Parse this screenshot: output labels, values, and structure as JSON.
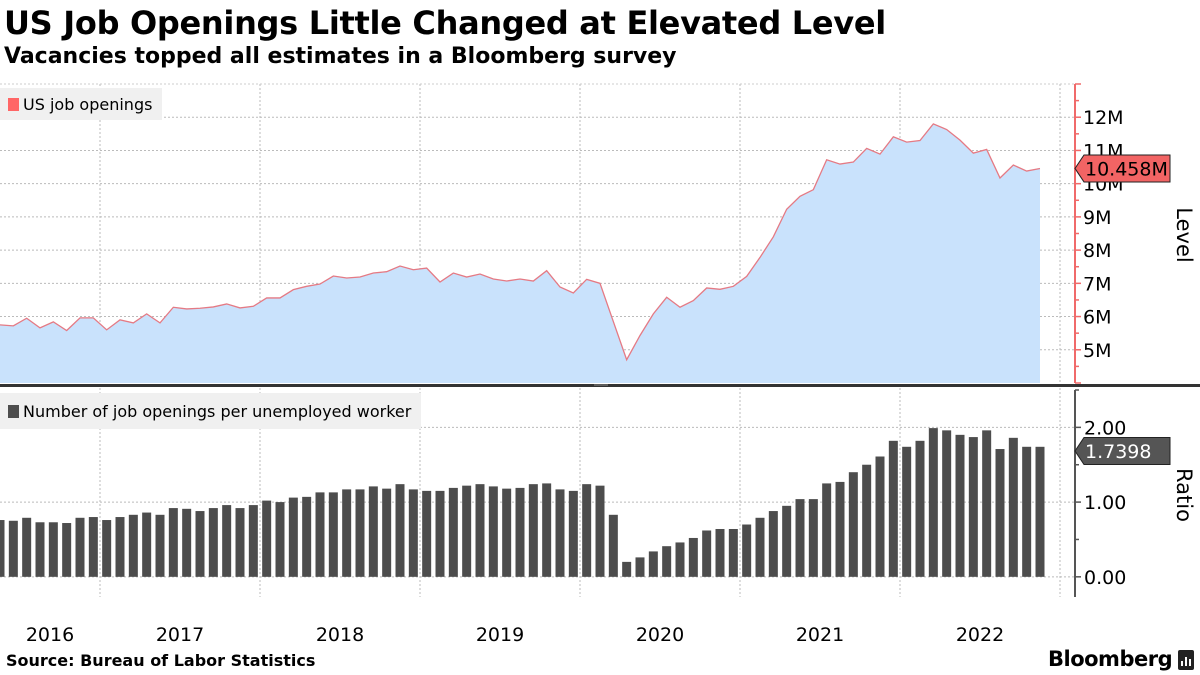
{
  "title": "US Job Openings Little Changed at Elevated Level",
  "subtitle": "Vacancies topped all estimates in a Bloomberg survey",
  "source": "Source: Bureau of Labor Statistics",
  "brand": "Bloomberg",
  "colors": {
    "area_fill": "#c9e2fc",
    "line": "#e57a84",
    "level_axis": "#f06a6a",
    "callout_level": "#f26464",
    "bars": "#4d4d4d",
    "callout_ratio": "#555555",
    "divider": "#333333"
  },
  "chart_data": [
    {
      "type": "area",
      "legend": "US job openings",
      "legend_placement": "top-left",
      "ylabel": "Level",
      "y_axis_side": "right",
      "ylim": [
        4,
        13
      ],
      "yticks": [
        5,
        6,
        7,
        8,
        9,
        10,
        11,
        12
      ],
      "ytick_labels": [
        "5M",
        "6M",
        "7M",
        "8M",
        "9M",
        "10M",
        "11M",
        "12M"
      ],
      "grid": true,
      "last_value_label": "10.458M",
      "x": [
        "2016-05",
        "2016-06",
        "2016-07",
        "2016-08",
        "2016-09",
        "2016-10",
        "2016-11",
        "2016-12",
        "2017-01",
        "2017-02",
        "2017-03",
        "2017-04",
        "2017-05",
        "2017-06",
        "2017-07",
        "2017-08",
        "2017-09",
        "2017-10",
        "2017-11",
        "2017-12",
        "2018-01",
        "2018-02",
        "2018-03",
        "2018-04",
        "2018-05",
        "2018-06",
        "2018-07",
        "2018-08",
        "2018-09",
        "2018-10",
        "2018-11",
        "2018-12",
        "2019-01",
        "2019-02",
        "2019-03",
        "2019-04",
        "2019-05",
        "2019-06",
        "2019-07",
        "2019-08",
        "2019-09",
        "2019-10",
        "2019-11",
        "2019-12",
        "2020-01",
        "2020-02",
        "2020-03",
        "2020-04",
        "2020-05",
        "2020-06",
        "2020-07",
        "2020-08",
        "2020-09",
        "2020-10",
        "2020-11",
        "2020-12",
        "2021-01",
        "2021-02",
        "2021-03",
        "2021-04",
        "2021-05",
        "2021-06",
        "2021-07",
        "2021-08",
        "2021-09",
        "2021-10",
        "2021-11",
        "2021-12",
        "2022-01",
        "2022-02",
        "2022-03",
        "2022-04",
        "2022-05",
        "2022-06",
        "2022-07",
        "2022-08",
        "2022-09",
        "2022-10",
        "2022-11"
      ],
      "values": [
        5.75,
        5.72,
        5.95,
        5.66,
        5.84,
        5.58,
        5.96,
        5.96,
        5.6,
        5.9,
        5.81,
        6.08,
        5.81,
        6.28,
        6.23,
        6.25,
        6.29,
        6.38,
        6.26,
        6.31,
        6.56,
        6.56,
        6.81,
        6.91,
        6.98,
        7.22,
        7.16,
        7.19,
        7.31,
        7.35,
        7.52,
        7.41,
        7.46,
        7.04,
        7.31,
        7.19,
        7.28,
        7.13,
        7.07,
        7.13,
        7.07,
        7.38,
        6.89,
        6.71,
        7.12,
        7.0,
        5.85,
        4.7,
        5.43,
        6.08,
        6.58,
        6.28,
        6.48,
        6.86,
        6.82,
        6.91,
        7.21,
        7.78,
        8.4,
        9.23,
        9.62,
        9.82,
        10.72,
        10.59,
        10.65,
        11.06,
        10.89,
        11.41,
        11.25,
        11.3,
        11.8,
        11.63,
        11.31,
        10.92,
        11.03,
        10.17,
        10.56,
        10.38,
        10.458
      ]
    },
    {
      "type": "bar",
      "legend": "Number of job openings per unemployed worker",
      "legend_placement": "top-left",
      "ylabel": "Ratio",
      "y_axis_side": "right",
      "ylim": [
        -0.27,
        2.5
      ],
      "yticks": [
        0,
        1,
        2
      ],
      "ytick_labels": [
        "0.00",
        "1.00",
        "2.00"
      ],
      "grid": true,
      "last_value_label": "1.7398",
      "values": [
        0.76,
        0.75,
        0.79,
        0.73,
        0.73,
        0.72,
        0.79,
        0.8,
        0.76,
        0.8,
        0.83,
        0.86,
        0.83,
        0.92,
        0.91,
        0.88,
        0.92,
        0.96,
        0.92,
        0.96,
        1.02,
        1.0,
        1.06,
        1.07,
        1.13,
        1.13,
        1.17,
        1.17,
        1.21,
        1.18,
        1.24,
        1.17,
        1.15,
        1.15,
        1.19,
        1.22,
        1.24,
        1.21,
        1.18,
        1.19,
        1.24,
        1.25,
        1.17,
        1.15,
        1.24,
        1.22,
        0.83,
        0.2,
        0.26,
        0.34,
        0.41,
        0.46,
        0.52,
        0.62,
        0.64,
        0.64,
        0.7,
        0.79,
        0.88,
        0.95,
        1.04,
        1.04,
        1.25,
        1.27,
        1.4,
        1.5,
        1.61,
        1.82,
        1.74,
        1.82,
        1.99,
        1.96,
        1.9,
        1.87,
        1.96,
        1.71,
        1.86,
        1.74,
        1.7398
      ]
    }
  ],
  "x_axis": {
    "tick_labels": [
      "2016",
      "2017",
      "2018",
      "2019",
      "2020",
      "2021",
      "2022"
    ],
    "range": [
      "2016-05",
      "2023-01"
    ]
  }
}
